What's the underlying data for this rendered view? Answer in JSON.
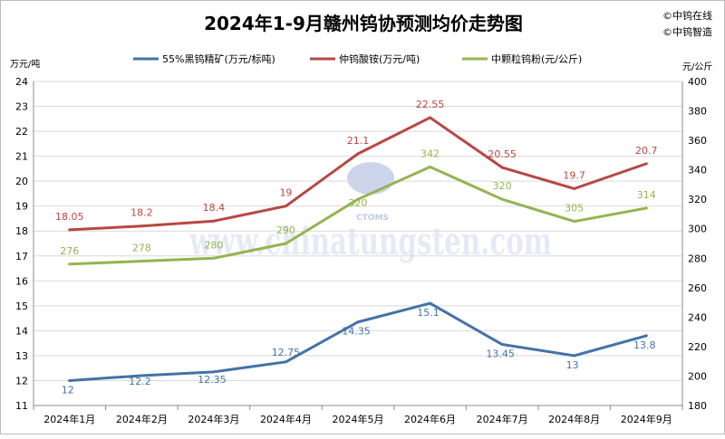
{
  "title": "2024年1-9月赣州钨协预测均价走势图",
  "brand": [
    "©中钨在线",
    "©中钨智造"
  ],
  "watermark": "www.chinatungsten.com",
  "logo_text": "CTOMS",
  "chart_data": {
    "type": "line",
    "categories": [
      "2024年1月",
      "2024年2月",
      "2024年3月",
      "2024年4月",
      "2024年5月",
      "2024年6月",
      "2024年7月",
      "2024年8月",
      "2024年9月"
    ],
    "left_axis": {
      "label": "万元/吨",
      "min": 11,
      "max": 24,
      "step": 1
    },
    "right_axis": {
      "label": "元/公斤",
      "min": 180,
      "max": 400,
      "step": 20
    },
    "grid": true,
    "legend_position": "top",
    "series": [
      {
        "name": "55%黑钨精矿(万元/标吨)",
        "axis": "left",
        "color": "#4472a8",
        "values": [
          12,
          12.2,
          12.35,
          12.75,
          14.35,
          15.1,
          13.45,
          13,
          13.8
        ],
        "labels": [
          "12",
          "12.2",
          "12.35",
          "12.75",
          "14.35",
          "15.1",
          "13.45",
          "13",
          "13.8"
        ]
      },
      {
        "name": "仲钨酸铵(万元/吨)",
        "axis": "left",
        "color": "#b84744",
        "values": [
          18.05,
          18.2,
          18.4,
          19,
          21.1,
          22.55,
          20.55,
          19.7,
          20.7
        ],
        "labels": [
          "18.05",
          "18.2",
          "18.4",
          "19",
          "21.1",
          "22.55",
          "20.55",
          "19.7",
          "20.7"
        ]
      },
      {
        "name": "中颗粒钨粉(元/公斤)",
        "axis": "right",
        "color": "#94b44f",
        "values": [
          276,
          278,
          280,
          290,
          320,
          342,
          320,
          305,
          314
        ],
        "labels": [
          "276",
          "278",
          "280",
          "290",
          "320",
          "342",
          "320",
          "305",
          "314"
        ]
      }
    ]
  }
}
